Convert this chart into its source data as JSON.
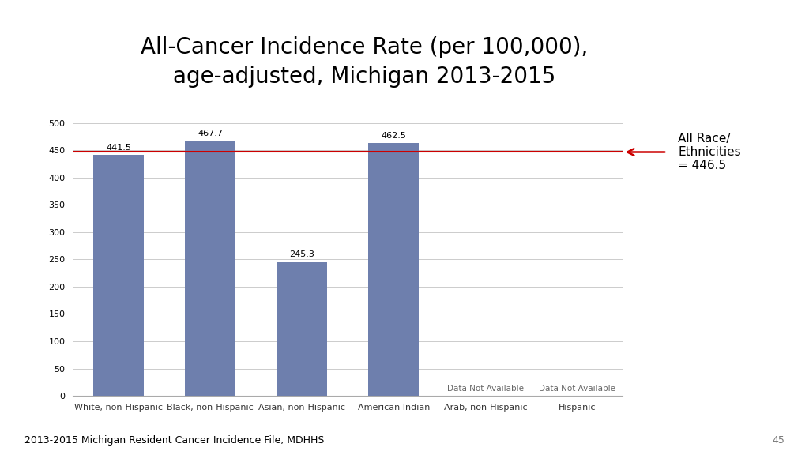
{
  "title": "All-Cancer Incidence Rate (per 100,000),\nage-adjusted, Michigan 2013-2015",
  "categories": [
    "White, non-Hispanic",
    "Black, non-Hispanic",
    "Asian, non-Hispanic",
    "American Indian",
    "Arab, non-Hispanic",
    "Hispanic"
  ],
  "values": [
    441.5,
    467.7,
    245.3,
    462.5,
    null,
    null
  ],
  "bar_color": "#6e7fad",
  "reference_line": 446.5,
  "reference_line_color": "#cc0000",
  "reference_label_line1": "All Race/",
  "reference_label_line2": "Ethnicities",
  "reference_label_line3": "= 446.5",
  "ylim": [
    0,
    500
  ],
  "yticks": [
    0,
    50,
    100,
    150,
    200,
    250,
    300,
    350,
    400,
    450,
    500
  ],
  "data_not_available_text": "Data Not Available",
  "footer_text": "2013-2015 Michigan Resident Cancer Incidence File, MDHHS",
  "page_number": "45",
  "background_color": "#ffffff",
  "title_fontsize": 20,
  "tick_fontsize": 8,
  "bar_label_fontsize": 8,
  "footer_fontsize": 9,
  "ref_label_fontsize": 11
}
